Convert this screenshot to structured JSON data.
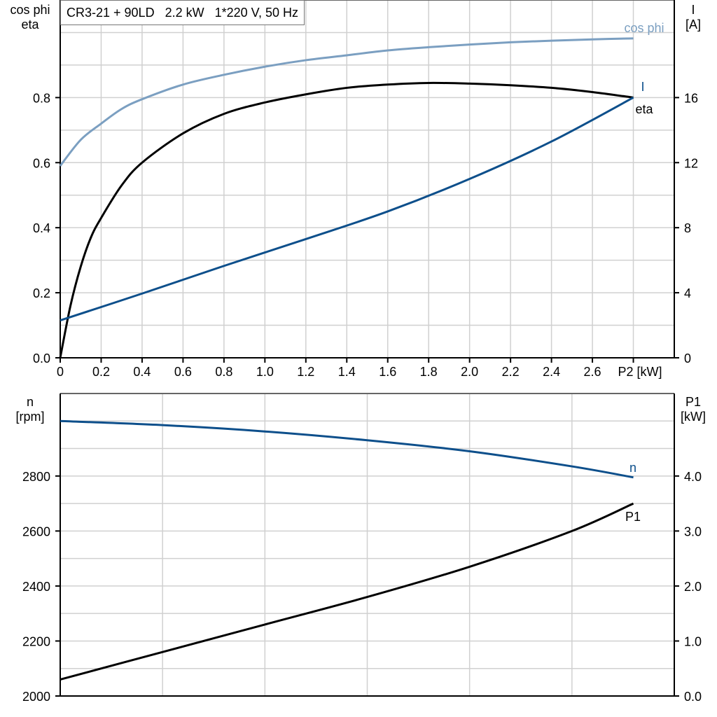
{
  "title": "CR3-21 + 90LD   2.2 kW   1*220 V, 50 Hz",
  "chart_data": [
    {
      "type": "line",
      "xlabel": "P2 [kW]",
      "ylabel_left": [
        "cos phi",
        "eta"
      ],
      "ylabel_right": [
        "I",
        "[A]"
      ],
      "xlim": [
        0,
        3.0
      ],
      "ylim_left": [
        0,
        1.1
      ],
      "ylim_right": [
        0,
        22
      ],
      "grid": true,
      "x_ticks": [
        "0",
        "0.2",
        "0.4",
        "0.6",
        "0.8",
        "1.0",
        "1.2",
        "1.4",
        "1.6",
        "1.8",
        "2.0",
        "2.2",
        "2.4",
        "2.6"
      ],
      "x_tick_values": [
        0,
        0.2,
        0.4,
        0.6,
        0.8,
        1.0,
        1.2,
        1.4,
        1.6,
        1.8,
        2.0,
        2.2,
        2.4,
        2.6
      ],
      "y_left_ticks": [
        "0.0",
        "0.2",
        "0.4",
        "0.6",
        "0.8"
      ],
      "y_left_tick_values": [
        0,
        0.2,
        0.4,
        0.6,
        0.8
      ],
      "y_right_ticks": [
        "0",
        "4",
        "8",
        "12",
        "16"
      ],
      "y_right_tick_values": [
        0,
        4,
        8,
        12,
        16
      ],
      "series": [
        {
          "name": "cos phi",
          "axis": "left",
          "color": "#7b9fc1",
          "x": [
            0,
            0.1,
            0.2,
            0.3,
            0.4,
            0.6,
            0.8,
            1.0,
            1.2,
            1.4,
            1.6,
            1.8,
            2.0,
            2.2,
            2.4,
            2.6,
            2.8
          ],
          "y": [
            0.59,
            0.67,
            0.72,
            0.765,
            0.795,
            0.84,
            0.87,
            0.895,
            0.915,
            0.93,
            0.945,
            0.955,
            0.963,
            0.97,
            0.975,
            0.979,
            0.982
          ]
        },
        {
          "name": "eta",
          "axis": "left",
          "color": "#000000",
          "x": [
            0,
            0.05,
            0.1,
            0.15,
            0.2,
            0.3,
            0.4,
            0.6,
            0.8,
            1.0,
            1.2,
            1.4,
            1.6,
            1.8,
            2.0,
            2.2,
            2.4,
            2.6,
            2.8
          ],
          "y": [
            0,
            0.16,
            0.28,
            0.37,
            0.43,
            0.53,
            0.6,
            0.69,
            0.75,
            0.785,
            0.81,
            0.83,
            0.84,
            0.845,
            0.843,
            0.838,
            0.83,
            0.817,
            0.8
          ]
        },
        {
          "name": "I",
          "axis": "right",
          "color": "#0d4f8b",
          "x": [
            0,
            0.4,
            0.8,
            1.2,
            1.6,
            2.0,
            2.4,
            2.8
          ],
          "y": [
            2.3,
            3.95,
            5.65,
            7.3,
            9.0,
            11.0,
            13.3,
            16.0
          ]
        }
      ]
    },
    {
      "type": "line",
      "xlabel": "",
      "ylabel_left": [
        "n",
        "[rpm]"
      ],
      "ylabel_right": [
        "P1",
        "[kW]"
      ],
      "xlim": [
        0,
        3.0
      ],
      "ylim_left": [
        2000,
        3100
      ],
      "ylim_right": [
        0,
        5.5
      ],
      "grid": true,
      "y_left_ticks": [
        "2000",
        "2200",
        "2400",
        "2600",
        "2800"
      ],
      "y_left_tick_values": [
        2000,
        2200,
        2400,
        2600,
        2800
      ],
      "y_right_ticks": [
        "0.0",
        "1.0",
        "2.0",
        "3.0",
        "4.0"
      ],
      "y_right_tick_values": [
        0,
        1,
        2,
        3,
        4
      ],
      "series": [
        {
          "name": "n",
          "axis": "left",
          "color": "#0d4f8b",
          "x": [
            0,
            0.5,
            1.0,
            1.5,
            2.0,
            2.5,
            2.8
          ],
          "y": [
            3000,
            2985,
            2962,
            2930,
            2890,
            2835,
            2795
          ]
        },
        {
          "name": "P1",
          "axis": "right",
          "color": "#000000",
          "x": [
            0,
            0.5,
            1.0,
            1.5,
            2.0,
            2.5,
            2.8
          ],
          "y": [
            0.3,
            0.8,
            1.3,
            1.8,
            2.35,
            3.0,
            3.5
          ]
        }
      ]
    }
  ]
}
